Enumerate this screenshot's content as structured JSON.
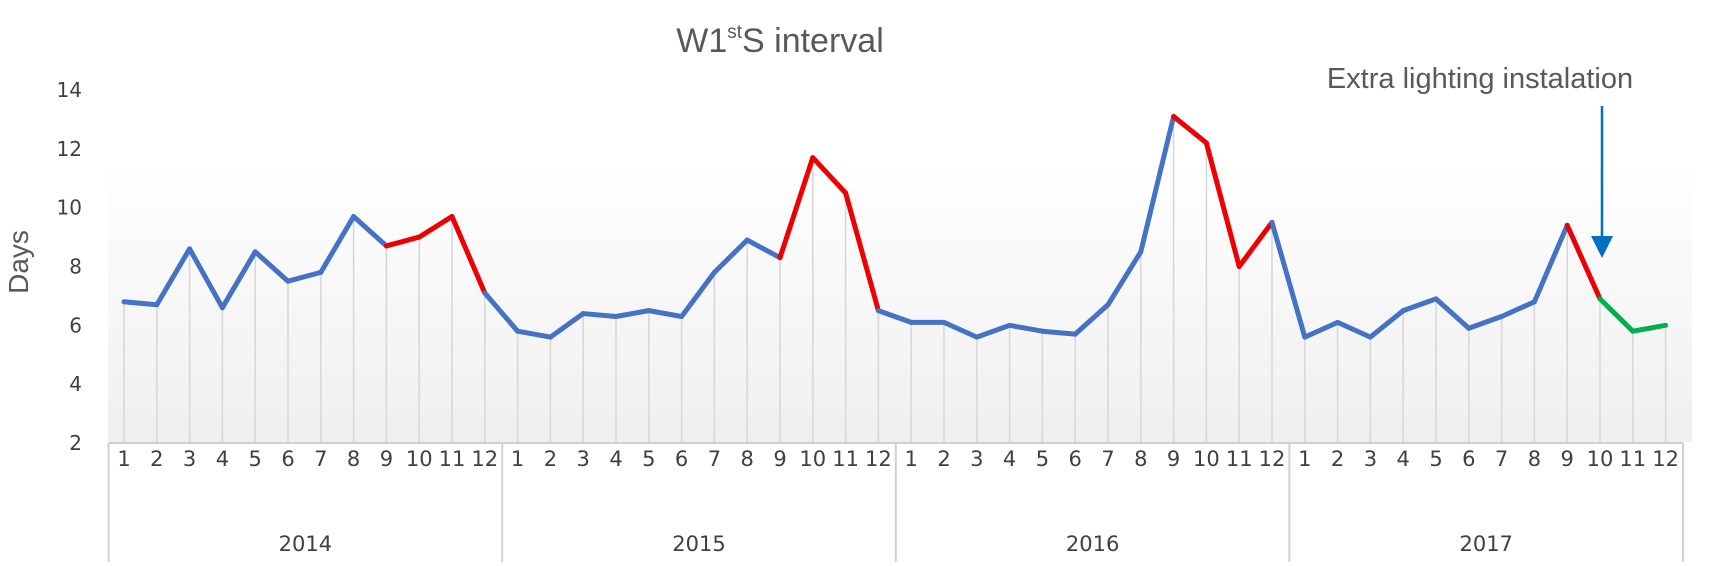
{
  "chart_data": {
    "type": "line",
    "title": {
      "main_before": "W1",
      "superscript": "st",
      "main_after": "S interval"
    },
    "ylabel": "Days",
    "ylim": [
      2,
      14
    ],
    "yticks": [
      "2",
      "4",
      "6",
      "8",
      "10",
      "12",
      "14"
    ],
    "years": [
      "2014",
      "2015",
      "2016",
      "2017"
    ],
    "months": [
      "1",
      "2",
      "3",
      "4",
      "5",
      "6",
      "7",
      "8",
      "9",
      "10",
      "11",
      "12"
    ],
    "values": [
      6.8,
      6.7,
      8.6,
      6.6,
      8.5,
      7.5,
      7.8,
      9.7,
      8.7,
      9.0,
      9.7,
      7.1,
      5.8,
      5.6,
      6.4,
      6.3,
      6.5,
      6.3,
      7.8,
      8.9,
      8.3,
      11.7,
      10.5,
      6.5,
      6.1,
      6.1,
      5.6,
      6.0,
      5.8,
      5.7,
      6.7,
      8.5,
      13.1,
      12.2,
      8.0,
      9.5,
      5.6,
      6.1,
      5.6,
      6.5,
      6.9,
      5.9,
      6.3,
      6.8,
      9.4,
      6.9,
      5.8,
      6.0
    ],
    "segment_colors": {
      "normal": "#4472C4",
      "high": "#EE0000",
      "after_installation": "#00B050"
    },
    "red_segments": [
      [
        8,
        11
      ],
      [
        20,
        23
      ],
      [
        32,
        35
      ],
      [
        44,
        45
      ]
    ],
    "green_segments": [
      [
        45,
        47
      ]
    ],
    "annotation": {
      "text": "Extra lighting instalation",
      "arrow_color": "#0070C0",
      "points_to_index": 45
    },
    "grid": false,
    "drop_lines": true,
    "legend": "none"
  }
}
